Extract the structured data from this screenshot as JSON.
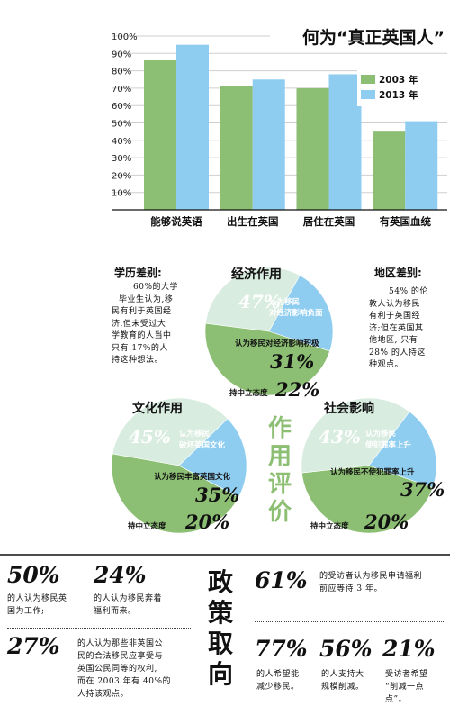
{
  "chart_data": [
    {
      "type": "bar",
      "title": "何为“真正英国人”",
      "categories": [
        "能够说英语",
        "出生在英国",
        "居住在英国",
        "有英国血统"
      ],
      "series": [
        {
          "name": "2003 年",
          "color": "#8cbf73",
          "values": [
            86,
            71,
            70,
            45
          ]
        },
        {
          "name": "2013 年",
          "color": "#8fcdf0",
          "values": [
            95,
            75,
            78,
            51
          ]
        }
      ],
      "ylim": [
        0,
        100
      ],
      "yticks": [
        "10%",
        "20%",
        "30%",
        "40%",
        "50%",
        "60%",
        "70%",
        "80%",
        "90%",
        "100%"
      ],
      "legend": "right"
    },
    {
      "type": "pie",
      "title": "经济作用",
      "slices": [
        {
          "label": "认为移民对经济影响负面",
          "value": 47,
          "display": "47%",
          "color": "#8cbf73"
        },
        {
          "label": "认为移民对经济影响积极",
          "value": 31,
          "display": "31%",
          "color": "#d9ece0"
        },
        {
          "label": "持中立态度",
          "value": 22,
          "display": "22%",
          "color": "#8fcdf0"
        }
      ]
    },
    {
      "type": "pie",
      "title": "文化作用",
      "slices": [
        {
          "label": "认为移民破坏英国文化",
          "value": 45,
          "display": "45%",
          "color": "#8cbf73"
        },
        {
          "label": "认为移民丰富英国文化",
          "value": 35,
          "display": "35%",
          "color": "#d9ece0"
        },
        {
          "label": "持中立态度",
          "value": 20,
          "display": "20%",
          "color": "#8fcdf0"
        }
      ]
    },
    {
      "type": "pie",
      "title": "社会影响",
      "slices": [
        {
          "label": "认为移民使犯罪率上升",
          "value": 43,
          "display": "43%",
          "color": "#8cbf73"
        },
        {
          "label": "认为移民不使犯罪率上升",
          "value": 37,
          "display": "37%",
          "color": "#d9ece0"
        },
        {
          "label": "持中立态度",
          "value": 20,
          "display": "20%",
          "color": "#8fcdf0"
        }
      ]
    }
  ],
  "pies_section": {
    "vertical_title": [
      "作",
      "用",
      "评",
      "价"
    ],
    "pie1": {
      "label1a": "认为移民",
      "label1b": "对经济影响负面",
      "label2": "认为移民对经济影响积极",
      "label3": "持中立态度"
    },
    "pie2": {
      "label1a": "认为移民",
      "label1b": "破坏英国文化",
      "label2": "认为移民丰富英国文化",
      "label3": "持中立态度"
    },
    "pie3": {
      "label1a": "认为移民",
      "label1b": "使犯罪率上升",
      "label2": "认为移民不使犯罪率上升",
      "label3": "持中立态度"
    },
    "edu": {
      "title": "学历差别:",
      "lines": [
        "60%的大学",
        "毕业生认为,移",
        "民有利于英国经",
        "济,但未受过大",
        "学教育的人当中",
        "只有 17%的人",
        "持这种想法。"
      ]
    },
    "region": {
      "title": "地区差别:",
      "lines": [
        "54% 的伦",
        "敦人认为移民",
        "有利于英国经",
        "济;但在英国其",
        "他地区, 只有",
        "28% 的人持这",
        "种观点。"
      ]
    }
  },
  "policy": {
    "vertical_title": [
      "政",
      "策",
      "取",
      "向"
    ],
    "left": [
      {
        "value": "50%",
        "text": [
          "的人认为移民英",
          "国为工作;"
        ]
      },
      {
        "value": "24%",
        "text": [
          "的人认为移民奔着",
          "福利而来。"
        ]
      },
      {
        "value": "27%",
        "text": [
          "的人认为那些非英国公",
          "民的合法移民应享受与",
          "英国公民同等的权利,",
          "而在 2003 年有 40%的",
          "人持该观点。"
        ]
      }
    ],
    "right": [
      {
        "value": "61%",
        "text": [
          "的受访者认为移民申请福利",
          "前应等待 3 年。"
        ]
      },
      {
        "value": "77%",
        "text": [
          "的人希望能",
          "减少移民。"
        ]
      },
      {
        "value": "56%",
        "text": [
          "的人支持大",
          "规模削减。"
        ]
      },
      {
        "value": "21%",
        "text": [
          "受访者希望",
          "“削减一点",
          "点”。"
        ]
      }
    ]
  }
}
